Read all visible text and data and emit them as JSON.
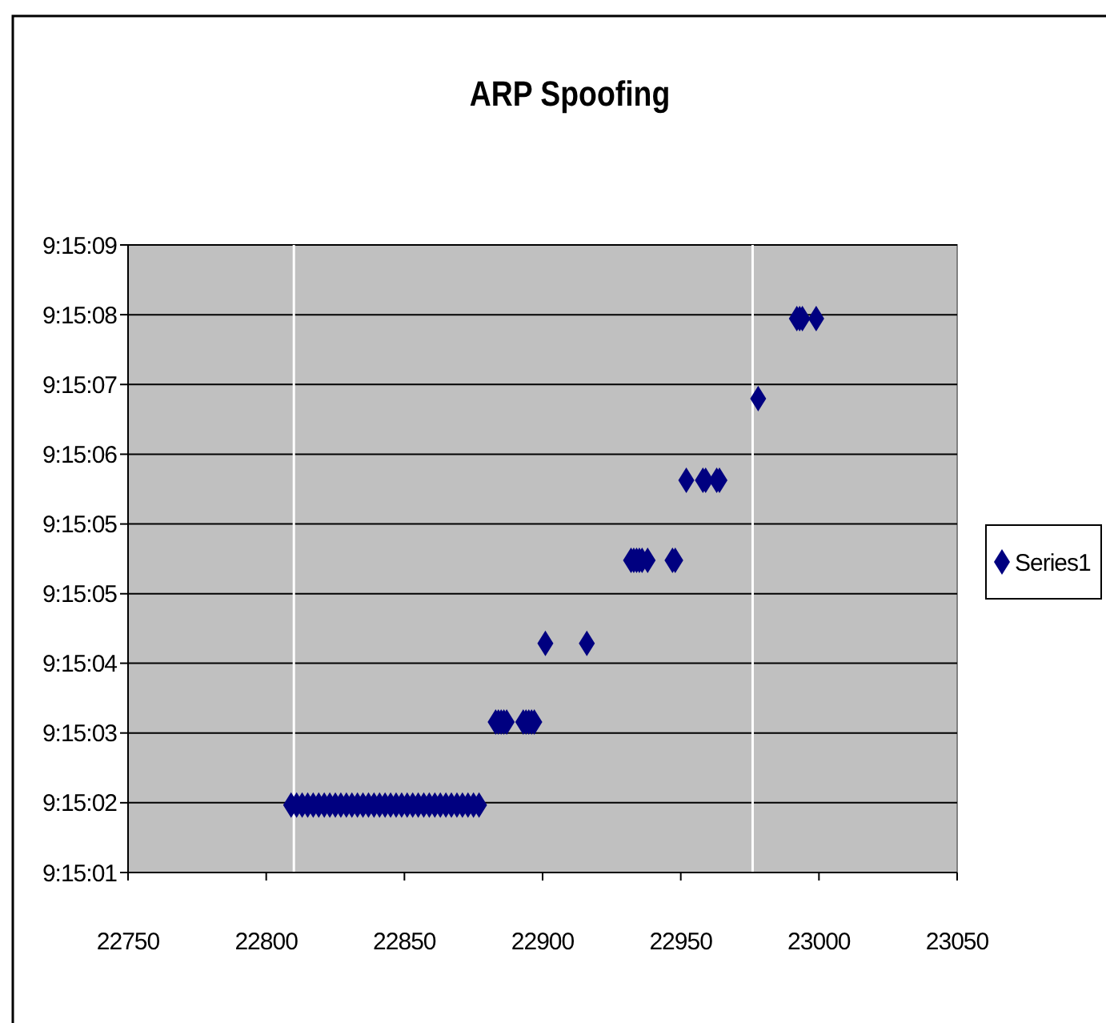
{
  "chart_data": {
    "type": "scatter",
    "title": "ARP Spoofing",
    "marker": "diamond",
    "legend": "right",
    "grid": "y",
    "xlim": [
      22750,
      23050
    ],
    "xticks": [
      22750,
      22800,
      22850,
      22900,
      22950,
      23000,
      23050
    ],
    "ylim": [
      9.250278,
      9.2525
    ],
    "yticks": [
      {
        "value": 9.250278,
        "label": "9:15:01"
      },
      {
        "value": 9.250525,
        "label": "9:15:02"
      },
      {
        "value": 9.250772,
        "label": "9:15:03"
      },
      {
        "value": 9.251019,
        "label": "9:15:04"
      },
      {
        "value": 9.251265,
        "label": "9:15:05"
      },
      {
        "value": 9.251512,
        "label": "9:15:05"
      },
      {
        "value": 9.251759,
        "label": "9:15:06"
      },
      {
        "value": 9.252006,
        "label": "9:15:07"
      },
      {
        "value": 9.252253,
        "label": "9:15:08"
      },
      {
        "value": 9.2525,
        "label": "9:15:09"
      }
    ],
    "ref_lines": [
      {
        "axis": "x",
        "value": 22810,
        "color": "#ffffff"
      },
      {
        "axis": "x",
        "value": 22976,
        "color": "#ffffff"
      }
    ],
    "series": [
      {
        "name": "Series1",
        "color": "#000080",
        "x": [
          22809,
          22811,
          22813,
          22815,
          22817,
          22819,
          22821,
          22823,
          22825,
          22827,
          22829,
          22831,
          22833,
          22835,
          22837,
          22839,
          22841,
          22843,
          22845,
          22847,
          22849,
          22851,
          22853,
          22855,
          22857,
          22859,
          22861,
          22863,
          22865,
          22867,
          22869,
          22871,
          22873,
          22875,
          22877,
          22883,
          22884,
          22885,
          22886,
          22887,
          22893,
          22894,
          22895,
          22896,
          22897,
          22901,
          22916,
          22932,
          22933,
          22934,
          22935,
          22936,
          22938,
          22947,
          22948,
          22952,
          22958,
          22959,
          22963,
          22964,
          22978,
          22992,
          22993,
          22994,
          22999
        ],
        "values": [
          9.250517,
          9.250517,
          9.250517,
          9.250517,
          9.250517,
          9.250517,
          9.250517,
          9.250517,
          9.250517,
          9.250517,
          9.250517,
          9.250517,
          9.250517,
          9.250517,
          9.250517,
          9.250517,
          9.250517,
          9.250517,
          9.250517,
          9.250517,
          9.250517,
          9.250517,
          9.250517,
          9.250517,
          9.250517,
          9.250517,
          9.250517,
          9.250517,
          9.250517,
          9.250517,
          9.250517,
          9.250517,
          9.250517,
          9.250517,
          9.250517,
          9.250811,
          9.250811,
          9.250811,
          9.250811,
          9.250811,
          9.250811,
          9.250811,
          9.250811,
          9.250811,
          9.250811,
          9.251089,
          9.251089,
          9.251383,
          9.251383,
          9.251383,
          9.251383,
          9.251383,
          9.251383,
          9.251383,
          9.251383,
          9.251667,
          9.251667,
          9.251667,
          9.251667,
          9.251667,
          9.251956,
          9.252239,
          9.252239,
          9.252239,
          9.252239
        ]
      }
    ]
  }
}
